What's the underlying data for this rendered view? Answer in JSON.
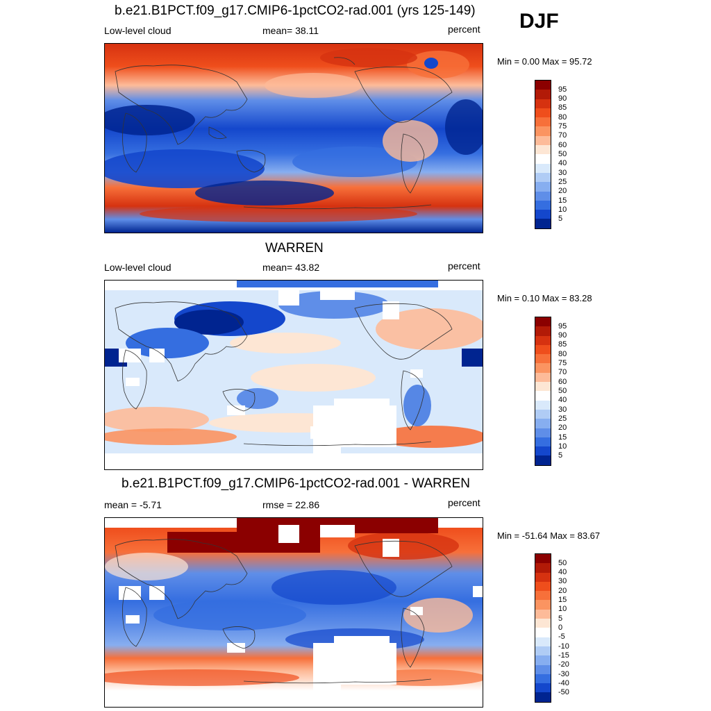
{
  "season": "DJF",
  "panels": [
    {
      "title": "b.e21.B1PCT.f09_g17.CMIP6-1pctCO2-rad.001 (yrs 125-149)",
      "left_label": "Low-level cloud",
      "center_label": "mean=  38.11",
      "units": "percent",
      "minmax": "Min =   0.00 Max =  95.72",
      "colorbar_ticks": [
        "95",
        "90",
        "85",
        "80",
        "75",
        "70",
        "60",
        "50",
        "40",
        "30",
        "25",
        "20",
        "15",
        "10",
        "5"
      ]
    },
    {
      "title": "WARREN",
      "left_label": "Low-level cloud",
      "center_label": "mean=  43.82",
      "units": "percent",
      "minmax": "Min =   0.10 Max =  83.28",
      "colorbar_ticks": [
        "95",
        "90",
        "85",
        "80",
        "75",
        "70",
        "60",
        "50",
        "40",
        "30",
        "25",
        "20",
        "15",
        "10",
        "5"
      ]
    },
    {
      "title": "b.e21.B1PCT.f09_g17.CMIP6-1pctCO2-rad.001 - WARREN",
      "left_label": "mean =  -5.71",
      "center_label": "rmse =  22.86",
      "units": "percent",
      "minmax": "Min = -51.64 Max =  83.67",
      "colorbar_ticks": [
        "50",
        "40",
        "30",
        "20",
        "15",
        "10",
        "5",
        "0",
        "-5",
        "-10",
        "-15",
        "-20",
        "-30",
        "-40",
        "-50"
      ]
    }
  ],
  "colors": {
    "palette": [
      "#8b0000",
      "#b21a07",
      "#d63210",
      "#ef4e1c",
      "#f7703a",
      "#fb9461",
      "#fdbb99",
      "#fde6d4",
      "#d9e9fb",
      "#b0ccf5",
      "#87aef0",
      "#5f8ee8",
      "#356ee0",
      "#1447cc",
      "#002490",
      "#000080"
    ]
  }
}
